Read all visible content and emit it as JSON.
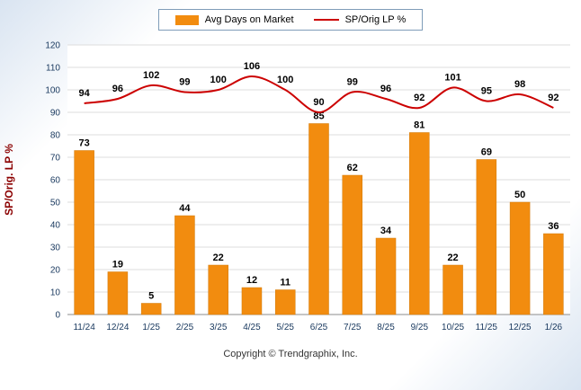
{
  "legend": {
    "bar_label": "Avg Days on Market",
    "line_label": "SP/Orig LP %"
  },
  "ylabel": "SP/Orig. LP %",
  "footer": "Copyright © Trendgraphix, Inc.",
  "colors": {
    "bar": "#F28C0F",
    "bar_border": "#D17A0A",
    "line": "#CC0000",
    "axis_text": "#17375D",
    "ylabel_color": "#8B0000",
    "grid": "#DEDEDE",
    "axis_line": "#8C8C8C",
    "value_label": "#000000"
  },
  "chart_data": {
    "type": "bar",
    "categories": [
      "11/24",
      "12/24",
      "1/25",
      "2/25",
      "3/25",
      "4/25",
      "5/25",
      "6/25",
      "7/25",
      "8/25",
      "9/25",
      "10/25",
      "11/25",
      "12/25",
      "1/26"
    ],
    "series": [
      {
        "name": "Avg Days on Market",
        "type": "bar",
        "values": [
          73,
          19,
          5,
          44,
          22,
          12,
          11,
          85,
          62,
          34,
          81,
          22,
          69,
          50,
          36
        ]
      },
      {
        "name": "SP/Orig LP %",
        "type": "line",
        "values": [
          94,
          96,
          102,
          99,
          100,
          106,
          100,
          90,
          99,
          96,
          92,
          101,
          95,
          98,
          92
        ]
      }
    ],
    "title": "",
    "xlabel": "",
    "ylabel": "SP/Orig. LP %",
    "ylim": [
      0,
      120
    ],
    "ytick_step": 10,
    "grid": true,
    "legend_position": "top-center"
  }
}
